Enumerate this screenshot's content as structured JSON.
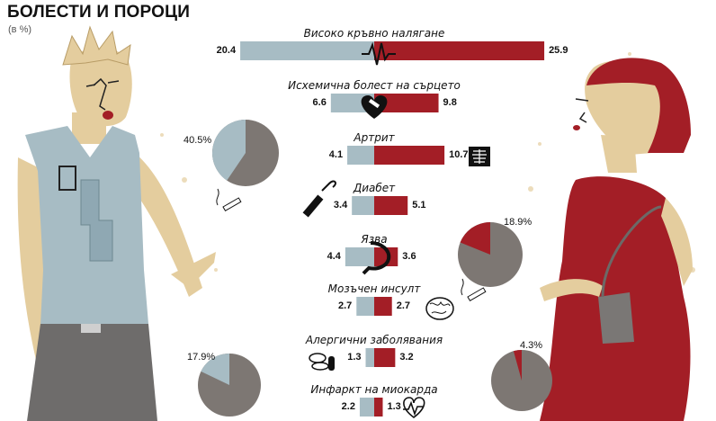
{
  "header": {
    "title": "БОЛЕСТИ И ПОРОЦИ",
    "subtitle": "(в %)"
  },
  "colors": {
    "men": "#a7bcc4",
    "women": "#a31e26",
    "pie_gray": "#7d7773",
    "figure": "#e4cd9e"
  },
  "chart_data": {
    "type": "bar",
    "orientation": "diverging-horizontal",
    "categories": [
      "Високо кръвно налягане",
      "Исхемична болест на сърцето",
      "Артрит",
      "Диабет",
      "Язва",
      "Мозъчен инсулт",
      "Алергични заболявания",
      "Инфаркт на миокарда"
    ],
    "series": [
      {
        "values": [
          20.4,
          6.6,
          4.1,
          3.4,
          4.4,
          2.7,
          1.3,
          2.2
        ]
      },
      {
        "values": [
          25.9,
          9.8,
          10.7,
          5.1,
          3.6,
          2.7,
          3.2,
          1.3
        ]
      }
    ],
    "value_labels": {
      "left": [
        "20.4",
        "6.6",
        "4.1",
        "3.4",
        "4.4",
        "2.7",
        "1.3",
        "2.2"
      ],
      "right": [
        "25.9",
        "9.8",
        "10.7",
        "5.1",
        "3.6",
        "2.7",
        "3.2",
        "1.3"
      ]
    },
    "icons": [
      "ekg-line-icon",
      "bandaged-heart-icon",
      "xray-chest-icon",
      "syringe-icon",
      "stomach-icon",
      "brain-icon",
      "pills-icon",
      "heartbeat-icon"
    ],
    "pies": [
      {
        "value": 40.5,
        "label": "40.5%",
        "color": "#a7bcc4",
        "icon": "cigarette-icon"
      },
      {
        "value": 17.9,
        "label": "17.9%",
        "color": "#a7bcc4"
      },
      {
        "value": 18.9,
        "label": "18.9%",
        "color": "#a31e26",
        "icon": "cigarette-icon"
      },
      {
        "value": 4.3,
        "label": "4.3%",
        "color": "#a31e26"
      }
    ]
  }
}
